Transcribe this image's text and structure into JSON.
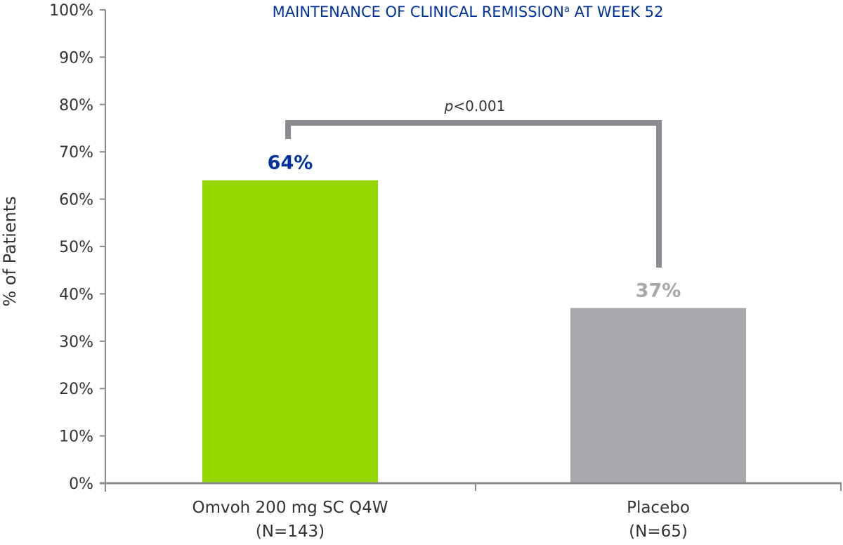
{
  "chart_data": {
    "type": "bar",
    "title": "MAINTENANCE OF CLINICAL REMISSION",
    "title_superscript": "a",
    "title_suffix": " AT WEEK 52",
    "ylabel": "% of Patients",
    "xlabel": "",
    "ylim": [
      0,
      100
    ],
    "yticks": [
      "0%",
      "10%",
      "20%",
      "30%",
      "40%",
      "50%",
      "60%",
      "70%",
      "80%",
      "90%",
      "100%"
    ],
    "categories": [
      {
        "label": "Omvoh 200 mg SC Q4W",
        "sublabel": "(N=143)"
      },
      {
        "label": "Placebo",
        "sublabel": "(N=65)"
      }
    ],
    "values": [
      64,
      37
    ],
    "data_labels": [
      "64%",
      "37%"
    ],
    "colors": [
      "#97d700",
      "#a7a8ac"
    ],
    "label_colors": [
      "#0033a0",
      "#a7a8ac"
    ],
    "significance": {
      "italic_prefix": "p",
      "text": "<0.001",
      "color": "#8a8b90"
    },
    "title_color": "#0033a0",
    "grid": false,
    "legend": "none"
  }
}
